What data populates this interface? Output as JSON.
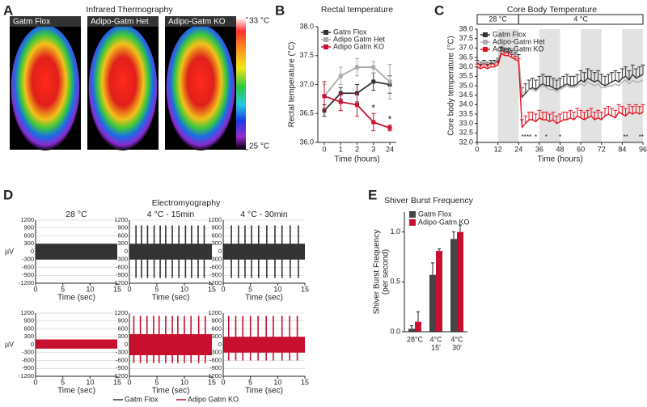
{
  "panel_labels": [
    "A",
    "B",
    "C",
    "D",
    "E"
  ],
  "chart_data": [
    {
      "type": "thermography",
      "title": "Infrared Thermography",
      "images": [
        "Gatm Flox",
        "Adipo-Gatm Het",
        "Adipo-Gatm KO"
      ],
      "colorbar_lim": [
        25,
        33
      ],
      "colorbar_ticks": [
        {
          "value": 33,
          "label": "33 °C"
        },
        {
          "value": 25,
          "label": "25 °C"
        }
      ]
    },
    {
      "type": "line",
      "title": "Rectal temperature",
      "xlabel": "Time (hours)",
      "ylabel": "Rectal temperature (°C)",
      "categories": [
        "0",
        "1",
        "2",
        "3",
        "24"
      ],
      "ylim": [
        36.0,
        38.0
      ],
      "yticks": [
        {
          "value": 36.0,
          "label": "36.0"
        },
        36.5,
        {
          "value": 37.0,
          "label": "37.0"
        },
        37.5,
        {
          "value": 38.0,
          "label": "38.0"
        }
      ],
      "series": [
        {
          "name": "Gatm Flox",
          "color": "#333333",
          "values": [
            36.55,
            36.85,
            36.85,
            37.05,
            37.0
          ],
          "errors": [
            0.1,
            0.1,
            0.15,
            0.15,
            0.15
          ]
        },
        {
          "name": "Adipo Gatm Het",
          "color": "#aaaaaa",
          "values": [
            36.8,
            37.15,
            37.3,
            37.3,
            37.05
          ],
          "errors": [
            0.2,
            0.15,
            0.15,
            0.1,
            0.3
          ]
        },
        {
          "name": "Adipo Gatm KO",
          "color": "#c8102e",
          "values": [
            36.8,
            36.7,
            36.65,
            36.35,
            36.25
          ],
          "errors": [
            0.25,
            0.15,
            0.2,
            0.15,
            0.05
          ]
        }
      ],
      "annotations": [
        {
          "text": "*",
          "x": "3"
        },
        {
          "text": "*",
          "x": "24"
        }
      ]
    },
    {
      "type": "line",
      "title": "Core Body Temperature",
      "xlabel": "Time (hours)",
      "ylabel": "Core body temperature (°C)",
      "xlim": [
        0,
        96
      ],
      "xticks": [
        0,
        12,
        24,
        36,
        48,
        60,
        72,
        84,
        96
      ],
      "ylim": [
        32.0,
        38.0
      ],
      "yticks": [
        {
          "value": 32.0,
          "label": "32.0"
        },
        32.5,
        {
          "value": 33.0,
          "label": "33.0"
        },
        33.5,
        {
          "value": 34.0,
          "label": "34.0"
        },
        34.5,
        {
          "value": 35.0,
          "label": "35.0"
        },
        35.5,
        {
          "value": 36.0,
          "label": "36.0"
        },
        36.5,
        {
          "value": 37.0,
          "label": "37.0"
        },
        37.5,
        {
          "value": 38.0,
          "label": "38.0"
        }
      ],
      "phases": [
        {
          "label": "28 °C",
          "from": 0,
          "to": 24
        },
        {
          "label": "4 °C",
          "from": 24,
          "to": 96
        }
      ],
      "shaded": [
        [
          12,
          24
        ],
        [
          36,
          48
        ],
        [
          60,
          72
        ],
        [
          84,
          96
        ]
      ],
      "x": [
        0,
        2,
        4,
        6,
        8,
        10,
        12,
        14,
        16,
        18,
        20,
        22,
        24,
        26,
        28,
        30,
        32,
        34,
        36,
        38,
        40,
        42,
        44,
        46,
        48,
        50,
        52,
        54,
        56,
        58,
        60,
        62,
        64,
        66,
        68,
        70,
        72,
        74,
        76,
        78,
        80,
        82,
        84,
        86,
        88,
        90,
        92,
        94,
        96
      ],
      "series": [
        {
          "name": "Gatm Flox",
          "color": "#333333",
          "values": [
            36.2,
            36.1,
            36.2,
            36.1,
            36.2,
            36.2,
            36.3,
            36.9,
            36.8,
            36.8,
            36.7,
            36.6,
            36.5,
            34.4,
            34.6,
            34.8,
            34.9,
            34.8,
            35.0,
            35.1,
            35.0,
            35.0,
            34.9,
            34.8,
            34.9,
            35.0,
            35.1,
            35.0,
            35.0,
            35.1,
            35.3,
            35.2,
            35.4,
            35.3,
            35.2,
            35.3,
            35.1,
            35.0,
            35.1,
            35.2,
            35.3,
            35.2,
            35.4,
            35.5,
            35.3,
            35.6,
            35.4,
            35.5,
            35.6
          ],
          "errors": [
            0.15,
            0.15,
            0.15,
            0.15,
            0.15,
            0.15,
            0.15,
            0.15,
            0.15,
            0.15,
            0.15,
            0.15,
            0.15,
            0.5,
            0.5,
            0.5,
            0.5,
            0.5,
            0.5,
            0.5,
            0.5,
            0.5,
            0.5,
            0.5,
            0.5,
            0.5,
            0.5,
            0.5,
            0.5,
            0.5,
            0.5,
            0.5,
            0.5,
            0.5,
            0.5,
            0.5,
            0.5,
            0.5,
            0.5,
            0.5,
            0.5,
            0.5,
            0.5,
            0.5,
            0.5,
            0.5,
            0.5,
            0.5,
            0.5
          ]
        },
        {
          "name": "Adipo-Gatm Het",
          "color": "#b0b0b0",
          "values": [
            36.3,
            36.2,
            36.2,
            36.2,
            36.3,
            36.2,
            36.4,
            36.9,
            36.8,
            36.7,
            36.7,
            36.6,
            36.5,
            34.6,
            34.7,
            34.8,
            34.8,
            34.7,
            34.9,
            35.0,
            34.9,
            34.8,
            34.8,
            34.7,
            34.8,
            34.9,
            35.0,
            34.9,
            34.9,
            35.0,
            35.1,
            35.0,
            35.2,
            35.1,
            35.0,
            35.1,
            34.9,
            34.9,
            35.0,
            35.0,
            35.1,
            35.0,
            35.2,
            35.3,
            35.1,
            35.3,
            35.2,
            35.2,
            35.3
          ]
        },
        {
          "name": "Adipo-Gatm KO",
          "color": "#e8101e",
          "values": [
            36.0,
            35.9,
            36.0,
            35.9,
            36.0,
            36.0,
            36.1,
            36.7,
            36.6,
            36.6,
            36.5,
            36.4,
            36.3,
            32.8,
            33.0,
            33.2,
            33.2,
            33.1,
            33.3,
            33.2,
            33.2,
            33.1,
            33.2,
            33.0,
            33.1,
            33.2,
            33.2,
            33.3,
            33.2,
            33.4,
            33.3,
            33.2,
            33.3,
            33.4,
            33.2,
            33.3,
            33.2,
            33.4,
            33.5,
            33.4,
            33.3,
            33.6,
            33.5,
            33.4,
            33.6,
            33.5,
            33.6,
            33.5,
            33.6
          ],
          "errors": [
            0.15,
            0.15,
            0.15,
            0.15,
            0.15,
            0.15,
            0.15,
            0.15,
            0.15,
            0.15,
            0.15,
            0.15,
            0.15,
            0.4,
            0.4,
            0.4,
            0.4,
            0.4,
            0.4,
            0.4,
            0.4,
            0.4,
            0.4,
            0.4,
            0.4,
            0.4,
            0.4,
            0.4,
            0.4,
            0.4,
            0.4,
            0.4,
            0.4,
            0.4,
            0.4,
            0.4,
            0.4,
            0.4,
            0.4,
            0.4,
            0.4,
            0.4,
            0.4,
            0.4,
            0.4,
            0.4,
            0.4,
            0.4,
            0.4
          ]
        }
      ],
      "annotations": [
        {
          "text": "**",
          "x": 27
        },
        {
          "text": "**",
          "x": 30
        },
        {
          "text": "*",
          "x": 34
        },
        {
          "text": "*",
          "x": 40
        },
        {
          "text": "*",
          "x": 48
        },
        {
          "text": "**",
          "x": 86
        },
        {
          "text": "**",
          "x": 95
        }
      ]
    },
    {
      "type": "emg",
      "title": "Electromyography",
      "xlabel": "Time (sec)",
      "ylabel": "µV",
      "columns": [
        "28 °C",
        "4 °C - 15min",
        "4 °C - 30min"
      ],
      "xlim": [
        0,
        15
      ],
      "xticks": [
        0,
        5,
        10,
        15
      ],
      "ylim": [
        -1200,
        1200
      ],
      "yticks": [
        -1200,
        -900,
        -600,
        -300,
        0,
        300,
        600,
        900,
        1200
      ],
      "series": [
        {
          "name": "Gatm Flox",
          "color": "#333333",
          "traces": [
            {
              "noise": [
                -300,
                300
              ],
              "burst_times": [],
              "burst_peaks": [],
              "burst_troughs": []
            },
            {
              "noise": [
                -300,
                300
              ],
              "burst_times": [
                1.2,
                2.2,
                3.3,
                4.5,
                5.6,
                6.6,
                7.8,
                9.0,
                10.2,
                11.3,
                12.5,
                13.6
              ],
              "burst_peaks": [
                1000,
                1000,
                1000,
                1000,
                1000,
                1000,
                1000,
                1000,
                1000,
                1000,
                1000,
                1000
              ],
              "burst_troughs": [
                -1000,
                -1000,
                -1000,
                -1000,
                -1000,
                -1000,
                -1000,
                -1000,
                -1000,
                -1000,
                -1000,
                -1000
              ]
            },
            {
              "noise": [
                -300,
                300
              ],
              "burst_times": [
                1.5,
                2.8,
                4.0,
                5.2,
                6.5,
                8.0,
                9.5,
                10.8,
                12.3,
                13.8
              ],
              "burst_peaks": [
                1000,
                1000,
                1000,
                1000,
                1000,
                1000,
                1000,
                1000,
                1000,
                1000
              ],
              "burst_troughs": [
                -1000,
                -1000,
                -1000,
                -1000,
                -1000,
                -1000,
                -1000,
                -1000,
                -1000,
                -1000
              ]
            }
          ]
        },
        {
          "name": "Adipo Gatm KO",
          "color": "#c8102e",
          "traces": [
            {
              "noise": [
                -150,
                200
              ],
              "burst_times": [],
              "burst_peaks": [],
              "burst_troughs": []
            },
            {
              "noise": [
                -400,
                400
              ],
              "burst_times": [
                0.8,
                2.0,
                3.2,
                4.4,
                5.4,
                6.6,
                7.8,
                8.8,
                10.0,
                11.2,
                12.6,
                13.8
              ],
              "burst_peaks": [
                1100,
                1100,
                1100,
                1100,
                1100,
                1100,
                1100,
                1100,
                1100,
                1100,
                1100,
                1100
              ],
              "burst_troughs": [
                -700,
                -700,
                -700,
                -700,
                -700,
                -700,
                -700,
                -700,
                -700,
                -700,
                -700,
                -700
              ]
            },
            {
              "noise": [
                -300,
                300
              ],
              "burst_times": [
                1.0,
                2.3,
                3.6,
                5.0,
                6.4,
                7.9,
                9.2,
                10.8,
                12.2,
                13.6
              ],
              "burst_peaks": [
                1100,
                1100,
                1100,
                1100,
                1100,
                1100,
                1100,
                1100,
                1100,
                1100
              ],
              "burst_troughs": [
                -600,
                -600,
                -600,
                -600,
                -600,
                -600,
                -600,
                -600,
                -600,
                -600
              ]
            }
          ]
        }
      ]
    },
    {
      "type": "bar",
      "title": "Shiver Burst Frequency",
      "ylabel": [
        "Shiver Burst Frequency",
        "(per second)"
      ],
      "categories": [
        [
          "28°C"
        ],
        [
          "4°C",
          "15'"
        ],
        [
          "4°C",
          "30'"
        ]
      ],
      "ylim": [
        0,
        1.2
      ],
      "yticks": [
        {
          "value": 0,
          "label": "0.0"
        },
        0.5,
        {
          "value": 1,
          "label": "1.0"
        }
      ],
      "series": [
        {
          "name": "Gatm Flox",
          "color": "#444444",
          "values": [
            0.03,
            0.57,
            0.93
          ],
          "errors": [
            0.03,
            0.12,
            0.07
          ]
        },
        {
          "name": "Adipo-Gatm KO",
          "color": "#c8102e",
          "values": [
            0.1,
            0.81,
            1.0
          ],
          "errors": [
            0.1,
            0.02,
            0.07
          ]
        }
      ]
    }
  ]
}
